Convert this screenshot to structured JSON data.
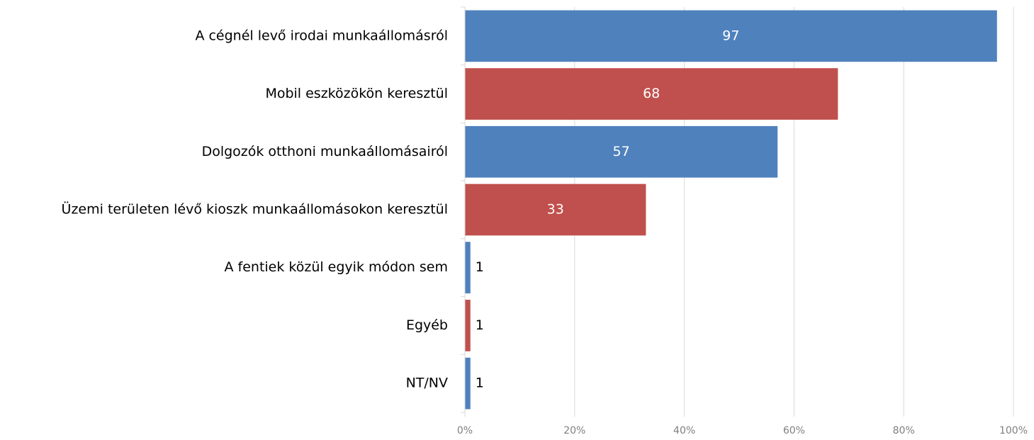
{
  "chart_data": {
    "type": "hbar",
    "categories": [
      "A cégnél levő irodai munkaállomásról",
      "Mobil eszközökön keresztül",
      "Dolgozók otthoni munkaállomásairól",
      "Üzemi területen lévő kioszk munkaállomásokon keresztül",
      "A fentiek közül egyik módon sem",
      "Egyéb",
      "NT/NV"
    ],
    "values": [
      97,
      68,
      57,
      33,
      1,
      1,
      1
    ],
    "colors": [
      "#4f81bd",
      "#c0504d",
      "#4f81bd",
      "#c0504d",
      "#4f81bd",
      "#c0504d",
      "#4f81bd"
    ],
    "xlim": [
      0,
      100
    ],
    "xticks": [
      {
        "value": 0,
        "label": "0%"
      },
      {
        "value": 20,
        "label": "20%"
      },
      {
        "value": 40,
        "label": "40%"
      },
      {
        "value": 60,
        "label": "60%"
      },
      {
        "value": 80,
        "label": "80%"
      },
      {
        "value": 100,
        "label": "100%"
      }
    ],
    "grid": true
  }
}
